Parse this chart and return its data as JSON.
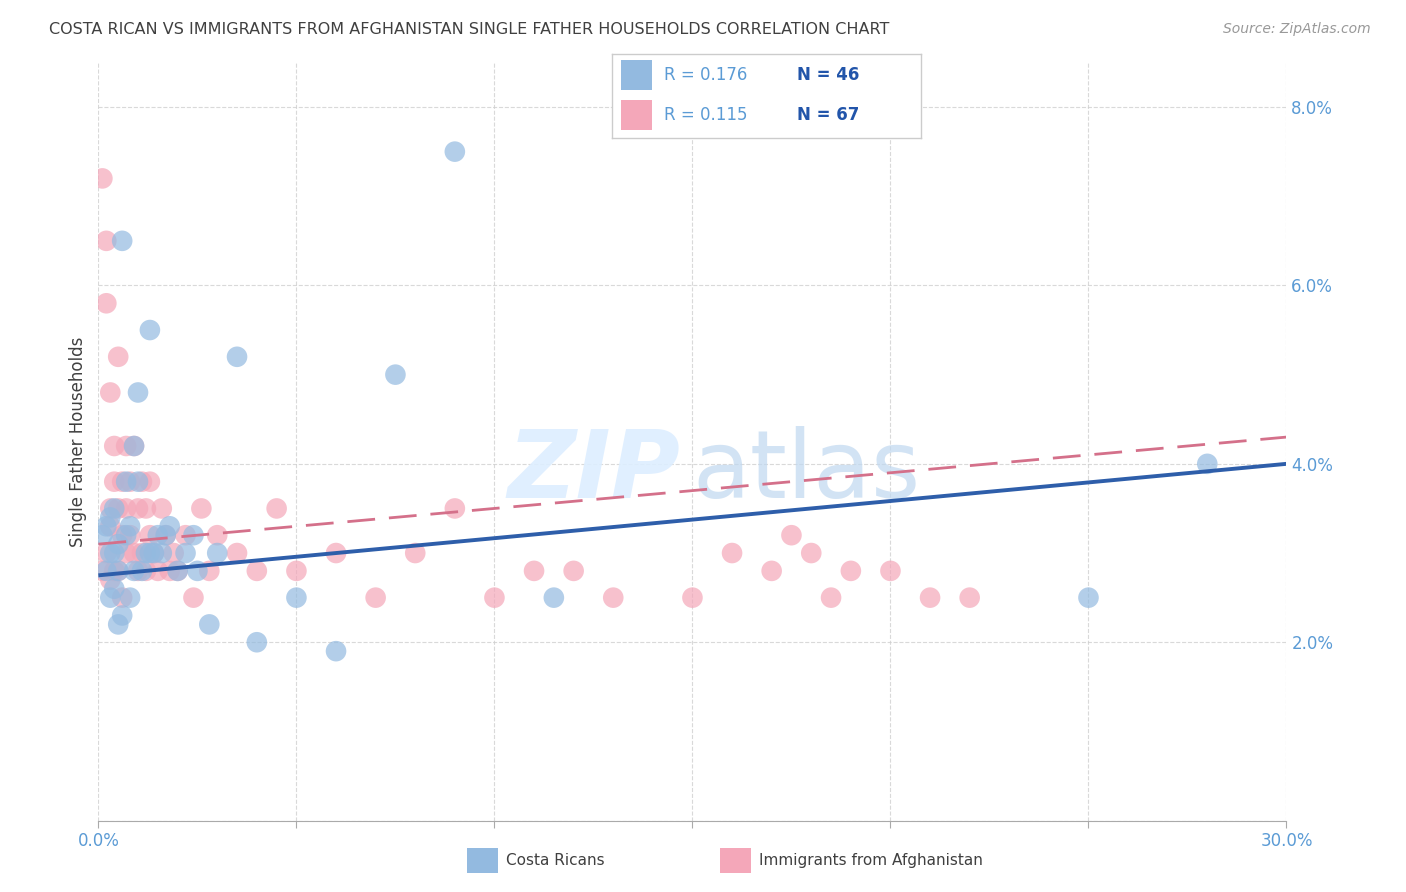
{
  "title": "COSTA RICAN VS IMMIGRANTS FROM AFGHANISTAN SINGLE FATHER HOUSEHOLDS CORRELATION CHART",
  "source": "Source: ZipAtlas.com",
  "ylabel": "Single Father Households",
  "xlim": [
    0.0,
    0.3
  ],
  "ylim": [
    0.0,
    0.085
  ],
  "xticks": [
    0.0,
    0.05,
    0.1,
    0.15,
    0.2,
    0.25,
    0.3
  ],
  "xtick_labels_show": [
    "0.0%",
    "",
    "",
    "",
    "",
    "",
    "30.0%"
  ],
  "yticks": [
    0.0,
    0.02,
    0.04,
    0.06,
    0.08
  ],
  "ytick_labels": [
    "",
    "2.0%",
    "4.0%",
    "6.0%",
    "8.0%"
  ],
  "blue_color": "#93BAE0",
  "blue_color_edge": "#5B9BD5",
  "pink_color": "#F4A7B9",
  "pink_color_edge": "#E87DA0",
  "blue_line_color": "#2E5EAA",
  "pink_line_color": "#D4708A",
  "r_blue": 0.176,
  "n_blue": 46,
  "r_pink": 0.115,
  "n_pink": 67,
  "legend1_label": "Costa Ricans",
  "legend2_label": "Immigrants from Afghanistan",
  "title_color": "#404040",
  "axis_tick_color": "#5B9BD5",
  "legend_text_color": "#404040",
  "legend_r_color": "#5B9BD5",
  "legend_n_color": "#2255AA",
  "blue_line_y0": 0.0275,
  "blue_line_y1": 0.04,
  "pink_line_y0": 0.031,
  "pink_line_y1": 0.043,
  "blue_scatter_x": [
    0.001,
    0.002,
    0.002,
    0.003,
    0.003,
    0.003,
    0.004,
    0.004,
    0.004,
    0.005,
    0.005,
    0.005,
    0.006,
    0.006,
    0.007,
    0.007,
    0.008,
    0.008,
    0.009,
    0.009,
    0.01,
    0.01,
    0.011,
    0.012,
    0.013,
    0.013,
    0.014,
    0.015,
    0.016,
    0.017,
    0.018,
    0.02,
    0.022,
    0.024,
    0.025,
    0.028,
    0.03,
    0.035,
    0.04,
    0.05,
    0.06,
    0.075,
    0.09,
    0.115,
    0.25,
    0.28
  ],
  "blue_scatter_y": [
    0.032,
    0.028,
    0.033,
    0.025,
    0.03,
    0.034,
    0.026,
    0.03,
    0.035,
    0.022,
    0.028,
    0.031,
    0.023,
    0.065,
    0.032,
    0.038,
    0.025,
    0.033,
    0.028,
    0.042,
    0.038,
    0.048,
    0.028,
    0.03,
    0.055,
    0.03,
    0.03,
    0.032,
    0.03,
    0.032,
    0.033,
    0.028,
    0.03,
    0.032,
    0.028,
    0.022,
    0.03,
    0.052,
    0.02,
    0.025,
    0.019,
    0.05,
    0.075,
    0.025,
    0.025,
    0.04
  ],
  "pink_scatter_x": [
    0.001,
    0.001,
    0.002,
    0.002,
    0.002,
    0.003,
    0.003,
    0.003,
    0.003,
    0.004,
    0.004,
    0.004,
    0.005,
    0.005,
    0.005,
    0.006,
    0.006,
    0.006,
    0.007,
    0.007,
    0.007,
    0.008,
    0.008,
    0.009,
    0.009,
    0.01,
    0.01,
    0.011,
    0.011,
    0.012,
    0.012,
    0.013,
    0.013,
    0.014,
    0.015,
    0.016,
    0.017,
    0.018,
    0.019,
    0.02,
    0.022,
    0.024,
    0.026,
    0.028,
    0.03,
    0.035,
    0.04,
    0.045,
    0.05,
    0.06,
    0.07,
    0.08,
    0.09,
    0.1,
    0.11,
    0.12,
    0.13,
    0.15,
    0.16,
    0.17,
    0.175,
    0.18,
    0.185,
    0.19,
    0.2,
    0.21,
    0.22
  ],
  "pink_scatter_y": [
    0.028,
    0.072,
    0.065,
    0.058,
    0.03,
    0.048,
    0.035,
    0.033,
    0.027,
    0.028,
    0.038,
    0.042,
    0.052,
    0.035,
    0.028,
    0.032,
    0.038,
    0.025,
    0.042,
    0.035,
    0.03,
    0.038,
    0.032,
    0.042,
    0.03,
    0.028,
    0.035,
    0.03,
    0.038,
    0.035,
    0.028,
    0.032,
    0.038,
    0.03,
    0.028,
    0.035,
    0.032,
    0.028,
    0.03,
    0.028,
    0.032,
    0.025,
    0.035,
    0.028,
    0.032,
    0.03,
    0.028,
    0.035,
    0.028,
    0.03,
    0.025,
    0.03,
    0.035,
    0.025,
    0.028,
    0.028,
    0.025,
    0.025,
    0.03,
    0.028,
    0.032,
    0.03,
    0.025,
    0.028,
    0.028,
    0.025,
    0.025
  ]
}
